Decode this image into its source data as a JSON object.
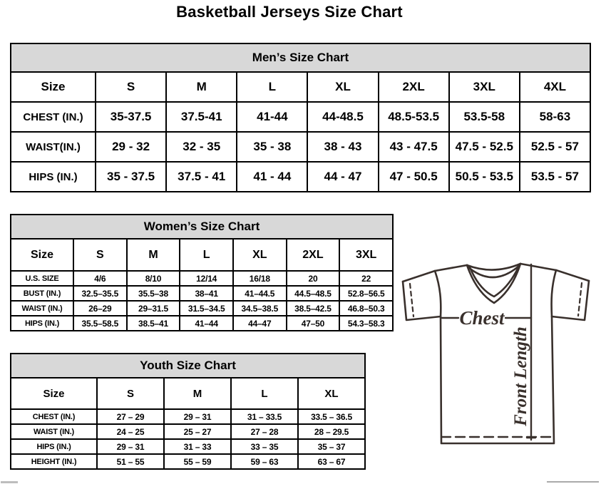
{
  "page": {
    "title": "Basketball Jerseys Size Chart"
  },
  "tables": {
    "men": {
      "title": "Men’s Size Chart",
      "size_label": "Size",
      "columns": [
        "S",
        "M",
        "L",
        "XL",
        "2XL",
        "3XL",
        "4XL"
      ],
      "rows": [
        {
          "label": "CHEST (IN.)",
          "values": [
            "35-37.5",
            "37.5-41",
            "41-44",
            "44-48.5",
            "48.5-53.5",
            "53.5-58",
            "58-63"
          ]
        },
        {
          "label": "WAIST(IN.)",
          "values": [
            "29 - 32",
            "32 - 35",
            "35 - 38",
            "38 - 43",
            "43 - 47.5",
            "47.5 - 52.5",
            "52.5 - 57"
          ]
        },
        {
          "label": "HIPS (IN.)",
          "values": [
            "35 - 37.5",
            "37.5 - 41",
            "41 - 44",
            "44 - 47",
            "47 - 50.5",
            "50.5 - 53.5",
            "53.5 - 57"
          ]
        }
      ]
    },
    "women": {
      "title": "Women’s Size Chart",
      "size_label": "Size",
      "columns": [
        "S",
        "M",
        "L",
        "XL",
        "2XL",
        "3XL"
      ],
      "rows": [
        {
          "label": "U.S. SIZE",
          "values": [
            "4/6",
            "8/10",
            "12/14",
            "16/18",
            "20",
            "22"
          ]
        },
        {
          "label": "BUST (IN.)",
          "values": [
            "32.5–35.5",
            "35.5–38",
            "38–41",
            "41–44.5",
            "44.5–48.5",
            "52.8–56.5"
          ]
        },
        {
          "label": "WAIST (IN.)",
          "values": [
            "26–29",
            "29–31.5",
            "31.5–34.5",
            "34.5–38.5",
            "38.5–42.5",
            "46.8–50.3"
          ]
        },
        {
          "label": "HIPS (IN.)",
          "values": [
            "35.5–58.5",
            "38.5–41",
            "41–44",
            "44–47",
            "47–50",
            "54.3–58.3"
          ]
        }
      ]
    },
    "youth": {
      "title": "Youth Size Chart",
      "size_label": "Size",
      "columns": [
        "S",
        "M",
        "L",
        "XL"
      ],
      "rows": [
        {
          "label": "CHEST (IN.)",
          "values": [
            "27 – 29",
            "29 – 31",
            "31 – 33.5",
            "33.5 – 36.5"
          ]
        },
        {
          "label": "WAIST (IN.)",
          "values": [
            "24 – 25",
            "25 – 27",
            "27 – 28",
            "28 – 29.5"
          ]
        },
        {
          "label": "HIPS (IN.)",
          "values": [
            "29 – 31",
            "31 – 33",
            "33 – 35",
            "35 – 37"
          ]
        },
        {
          "label": "HEIGHT (IN.)",
          "values": [
            "51 – 55",
            "55 – 59",
            "59 – 63",
            "63 – 67"
          ]
        }
      ]
    }
  },
  "diagram": {
    "chest_label": "Chest",
    "front_length_label": "Front Length"
  },
  "colors": {
    "table_header_bg": "#d8d8d8",
    "table_border": "#000000",
    "diagram_stroke": "#39302c",
    "page_bg": "#ffffff"
  }
}
